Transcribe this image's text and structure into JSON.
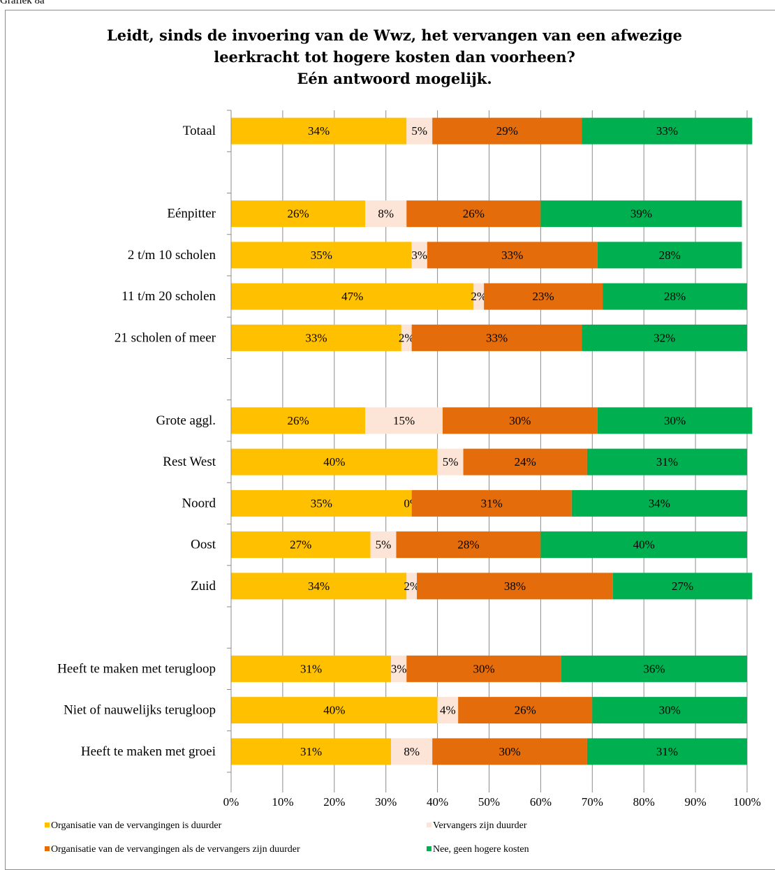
{
  "caption": "Grafiek 8a",
  "chart_data": {
    "type": "bar",
    "orientation": "horizontal",
    "stacked": true,
    "title_lines": [
      "Leidt, sinds de invoering van de Wwz, het vervangen van een afwezige",
      "leerkracht tot hogere kosten dan voorheen?",
      "Eén antwoord mogelijk."
    ],
    "categories": [
      "Totaal",
      "",
      "Eénpitter",
      "2 t/m 10 scholen",
      "11 t/m 20 scholen",
      "21 scholen of meer",
      "",
      "Grote aggl.",
      "Rest West",
      "Noord",
      "Oost",
      "Zuid",
      "",
      "Heeft te maken met terugloop",
      "Niet of nauwelijks terugloop",
      "Heeft te maken met groei"
    ],
    "series": [
      {
        "name": "Organisatie van de vervangingen is duurder",
        "color": "#FFC000",
        "values": [
          34,
          null,
          26,
          35,
          47,
          33,
          null,
          26,
          40,
          35,
          27,
          34,
          null,
          31,
          40,
          31
        ]
      },
      {
        "name": "Vervangers zijn duurder",
        "color": "#FCE4D6",
        "values": [
          5,
          null,
          8,
          3,
          2,
          2,
          null,
          15,
          5,
          0,
          5,
          2,
          null,
          3,
          4,
          8
        ]
      },
      {
        "name": "Organisatie van de vervangingen als de vervangers zijn duurder",
        "color": "#E46C0A",
        "values": [
          29,
          null,
          26,
          33,
          23,
          33,
          null,
          30,
          24,
          31,
          28,
          38,
          null,
          30,
          26,
          30
        ]
      },
      {
        "name": "Nee, geen hogere kosten",
        "color": "#00B050",
        "values": [
          33,
          null,
          39,
          28,
          28,
          32,
          null,
          30,
          31,
          34,
          40,
          27,
          null,
          36,
          30,
          31
        ]
      }
    ],
    "xaxis": {
      "ticks": [
        "0%",
        "10%",
        "20%",
        "30%",
        "40%",
        "50%",
        "60%",
        "70%",
        "80%",
        "90%",
        "100%"
      ],
      "range": [
        0,
        100
      ]
    },
    "grid": true,
    "legend_position": "bottom"
  }
}
